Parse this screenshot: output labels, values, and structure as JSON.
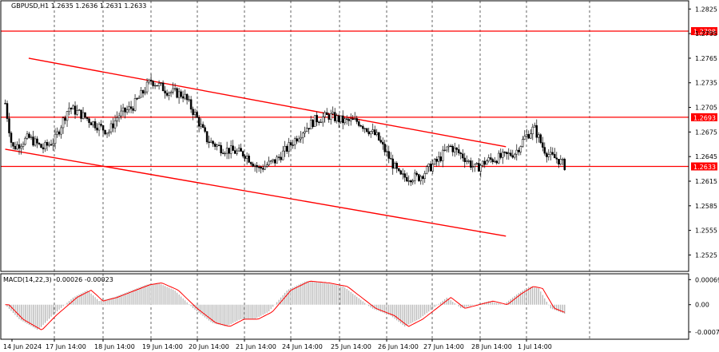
{
  "header": {
    "symbol_line": "GBPUSD,H1  1.2635 1.2636 1.2631 1.2633"
  },
  "macd_header": "MACD(14,22,3) -0.00026 -0.00023",
  "colors": {
    "up_candle": "#000000",
    "down_candle": "#000000",
    "level": "#ff0000",
    "grid": "#000000",
    "macd_hist": "#a0a0a0",
    "macd_signal": "#ff0000"
  },
  "chart_data": [
    {
      "type": "candlestick",
      "symbol": "GBPUSD",
      "timeframe": "H1",
      "ylim": [
        1.2505,
        1.2835
      ],
      "y_ticks": [
        "1.2825",
        "1.2795",
        "1.2765",
        "1.2735",
        "1.2705",
        "1.2675",
        "1.2645",
        "1.2615",
        "1.2585",
        "1.2555",
        "1.2525"
      ],
      "x_ticks": [
        "14 Jun 2024",
        "17 Jun 14:00",
        "18 Jun 14:00",
        "19 Jun 14:00",
        "20 Jun 14:00",
        "21 Jun 14:00",
        "24 Jun 14:00",
        "25 Jun 14:00",
        "26 Jun 14:00",
        "27 Jun 14:00",
        "28 Jun 14:00",
        "1 Jul 14:00"
      ],
      "levels": [
        {
          "value": 1.2798,
          "label": "1.2798"
        },
        {
          "value": 1.2693,
          "label": "1.2693"
        },
        {
          "value": 1.2633,
          "label": "1.2633"
        }
      ],
      "channel": {
        "upper": {
          "from": [
            0.5,
            1.2765
          ],
          "to": [
            10.65,
            1.2657
          ]
        },
        "lower": {
          "from": [
            0.0,
            1.2654
          ],
          "to": [
            10.65,
            1.2548
          ]
        }
      },
      "price_path": [
        [
          0.0,
          1.271
        ],
        [
          0.15,
          1.2655
        ],
        [
          0.5,
          1.2668
        ],
        [
          0.8,
          1.2655
        ],
        [
          1.05,
          1.2665
        ],
        [
          1.35,
          1.2705
        ],
        [
          1.6,
          1.2697
        ],
        [
          1.9,
          1.2685
        ],
        [
          2.2,
          1.2675
        ],
        [
          2.4,
          1.2695
        ],
        [
          2.7,
          1.2705
        ],
        [
          2.95,
          1.2725
        ],
        [
          3.1,
          1.2738
        ],
        [
          3.45,
          1.2725
        ],
        [
          3.8,
          1.272
        ],
        [
          4.05,
          1.2695
        ],
        [
          4.3,
          1.2665
        ],
        [
          4.6,
          1.2655
        ],
        [
          5.1,
          1.2648
        ],
        [
          5.4,
          1.263
        ],
        [
          5.75,
          1.264
        ],
        [
          6.0,
          1.2655
        ],
        [
          6.3,
          1.2675
        ],
        [
          6.6,
          1.269
        ],
        [
          6.9,
          1.2695
        ],
        [
          7.2,
          1.2688
        ],
        [
          7.5,
          1.2688
        ],
        [
          7.9,
          1.267
        ],
        [
          8.2,
          1.264
        ],
        [
          8.4,
          1.262
        ],
        [
          8.8,
          1.262
        ],
        [
          9.2,
          1.264
        ],
        [
          9.45,
          1.2658
        ],
        [
          9.75,
          1.2645
        ],
        [
          10.0,
          1.263
        ],
        [
          10.25,
          1.264
        ],
        [
          10.6,
          1.2645
        ],
        [
          10.85,
          1.265
        ],
        [
          11.05,
          1.2668
        ],
        [
          11.25,
          1.268
        ],
        [
          11.45,
          1.2655
        ],
        [
          11.6,
          1.2645
        ],
        [
          11.75,
          1.2642
        ],
        [
          11.92,
          1.2633
        ]
      ]
    },
    {
      "type": "macd",
      "params": "14,22,3",
      "values": {
        "macd": -0.00026,
        "signal": -0.00023
      },
      "ylim": [
        -0.00095,
        0.00085
      ],
      "y_ticks": [
        "0.00069",
        "0.00",
        "-0.00075"
      ],
      "hist_path": [
        [
          0.0,
          0.0
        ],
        [
          0.3,
          -0.0004
        ],
        [
          0.7,
          -0.0007
        ],
        [
          1.0,
          -0.0003
        ],
        [
          1.45,
          0.0002
        ],
        [
          1.75,
          0.0004
        ],
        [
          2.0,
          0.0001
        ],
        [
          2.3,
          0.0002
        ],
        [
          2.7,
          0.0004
        ],
        [
          3.0,
          0.00055
        ],
        [
          3.25,
          0.0006
        ],
        [
          3.6,
          0.0004
        ],
        [
          4.0,
          -0.0001
        ],
        [
          4.4,
          -0.0005
        ],
        [
          4.7,
          -0.0006
        ],
        [
          5.0,
          -0.0004
        ],
        [
          5.3,
          -0.0004
        ],
        [
          5.6,
          -0.0002
        ],
        [
          6.0,
          0.0004
        ],
        [
          6.4,
          0.00065
        ],
        [
          6.8,
          0.0006
        ],
        [
          7.2,
          0.0005
        ],
        [
          7.5,
          0.0002
        ],
        [
          7.8,
          -0.0001
        ],
        [
          8.2,
          -0.0003
        ],
        [
          8.5,
          -0.0006
        ],
        [
          8.8,
          -0.0004
        ],
        [
          9.1,
          -0.0001
        ],
        [
          9.4,
          0.0002
        ],
        [
          9.7,
          -0.0001
        ],
        [
          10.0,
          0.0
        ],
        [
          10.3,
          0.0001
        ],
        [
          10.6,
          0.0
        ],
        [
          10.9,
          0.0003
        ],
        [
          11.15,
          0.0005
        ],
        [
          11.35,
          0.00045
        ],
        [
          11.6,
          -0.0001
        ],
        [
          11.92,
          -0.00026
        ]
      ]
    }
  ]
}
